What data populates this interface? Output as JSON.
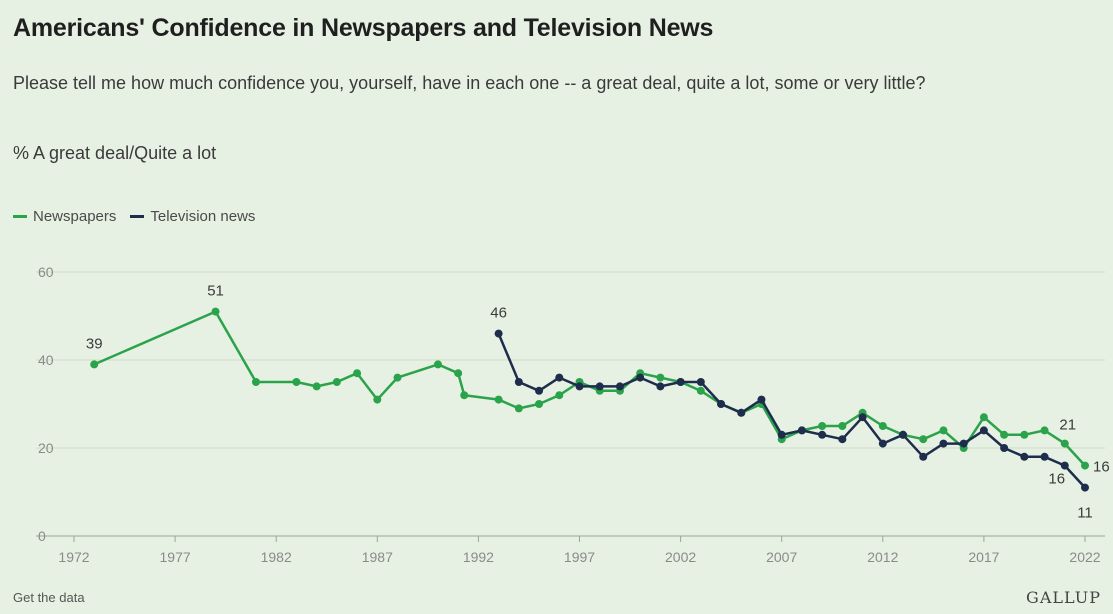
{
  "title": "Americans' Confidence in Newspapers and Television News",
  "subtitle": "Please tell me how much confidence you, yourself, have in each one -- a great deal, quite a lot, some or very little?",
  "measure": "% A great deal/Quite a lot",
  "footer": {
    "link": "Get the data",
    "brand": "GALLUP"
  },
  "chart_data": {
    "type": "line",
    "ylim": [
      0,
      60
    ],
    "xlim": [
      1972,
      2022
    ],
    "yticks": [
      0,
      20,
      40,
      60
    ],
    "xticks": [
      1972,
      1977,
      1982,
      1987,
      1992,
      1997,
      2002,
      2007,
      2012,
      2017,
      2022
    ],
    "grid": "horizontal",
    "legend_position": "top-left",
    "series": [
      {
        "name": "Newspapers",
        "color": "#2aa34a",
        "points": [
          [
            1973,
            39
          ],
          [
            1979,
            51
          ],
          [
            1981,
            35
          ],
          [
            1983,
            35
          ],
          [
            1984,
            34
          ],
          [
            1985,
            35
          ],
          [
            1986,
            37
          ],
          [
            1987,
            31
          ],
          [
            1988,
            36
          ],
          [
            1990,
            39
          ],
          [
            1991,
            37
          ],
          [
            1991.3,
            32
          ],
          [
            1993,
            31
          ],
          [
            1994,
            29
          ],
          [
            1995,
            30
          ],
          [
            1996,
            32
          ],
          [
            1997,
            35
          ],
          [
            1998,
            33
          ],
          [
            1999,
            33
          ],
          [
            2000,
            37
          ],
          [
            2001,
            36
          ],
          [
            2002,
            35
          ],
          [
            2003,
            33
          ],
          [
            2004,
            30
          ],
          [
            2005,
            28
          ],
          [
            2006,
            30
          ],
          [
            2007,
            22
          ],
          [
            2008,
            24
          ],
          [
            2009,
            25
          ],
          [
            2010,
            25
          ],
          [
            2011,
            28
          ],
          [
            2012,
            25
          ],
          [
            2013,
            23
          ],
          [
            2014,
            22
          ],
          [
            2015,
            24
          ],
          [
            2016,
            20
          ],
          [
            2017,
            27
          ],
          [
            2018,
            23
          ],
          [
            2019,
            23
          ],
          [
            2020,
            24
          ],
          [
            2021,
            21
          ],
          [
            2022,
            16
          ]
        ],
        "labels": [
          {
            "x": 1973,
            "text": "39"
          },
          {
            "x": 1979,
            "text": "51"
          },
          {
            "x": 2021,
            "text": "21"
          },
          {
            "x": 2022,
            "text": "16"
          }
        ]
      },
      {
        "name": "Television news",
        "color": "#1f2d4d",
        "points": [
          [
            1993,
            46
          ],
          [
            1994,
            35
          ],
          [
            1995,
            33
          ],
          [
            1996,
            36
          ],
          [
            1997,
            34
          ],
          [
            1998,
            34
          ],
          [
            1999,
            34
          ],
          [
            2000,
            36
          ],
          [
            2001,
            34
          ],
          [
            2002,
            35
          ],
          [
            2003,
            35
          ],
          [
            2004,
            30
          ],
          [
            2005,
            28
          ],
          [
            2006,
            31
          ],
          [
            2007,
            23
          ],
          [
            2008,
            24
          ],
          [
            2009,
            23
          ],
          [
            2010,
            22
          ],
          [
            2011,
            27
          ],
          [
            2012,
            21
          ],
          [
            2013,
            23
          ],
          [
            2014,
            18
          ],
          [
            2015,
            21
          ],
          [
            2016,
            21
          ],
          [
            2017,
            24
          ],
          [
            2018,
            20
          ],
          [
            2019,
            18
          ],
          [
            2020,
            18
          ],
          [
            2021,
            16
          ],
          [
            2022,
            11
          ]
        ],
        "labels": [
          {
            "x": 1993,
            "text": "46"
          },
          {
            "x": 2021,
            "text": "16"
          },
          {
            "x": 2022,
            "text": "11"
          }
        ]
      }
    ]
  }
}
